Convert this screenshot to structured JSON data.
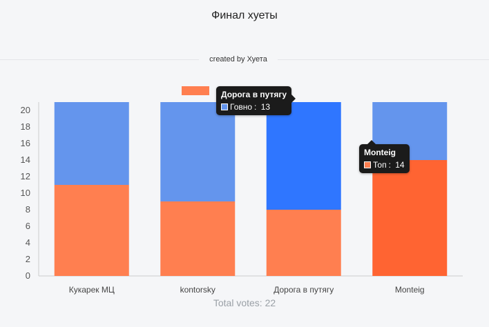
{
  "title": "Финал хуеты",
  "credit": "created by Хуета",
  "footer": "Total votes: 22",
  "chart_data": {
    "type": "bar",
    "stacked": true,
    "categories": [
      "Кукарек МЦ",
      "kontorsky",
      "Дорога в путягу",
      "Monteig"
    ],
    "series": [
      {
        "name": "Топ",
        "values": [
          11,
          9,
          8,
          14
        ],
        "color": "#ff7f50"
      },
      {
        "name": "Говно",
        "values": [
          10,
          12,
          13,
          7
        ],
        "color": "#6495ed"
      }
    ],
    "ylim": [
      0,
      21
    ],
    "yticks": [
      0,
      2,
      4,
      6,
      8,
      10,
      12,
      14,
      16,
      18,
      20
    ],
    "legend": "top",
    "highlight": {
      "category_index": 2,
      "series_index": 1,
      "color": "#2f76ff"
    },
    "highlight2": {
      "category_index": 3,
      "series_index": 0,
      "color": "#ff6432"
    }
  },
  "tooltips": [
    {
      "title": "Дорога в путягу",
      "series": "Говно",
      "value": "13",
      "color": "#6495ed"
    },
    {
      "title": "Monteig",
      "series": "Топ",
      "value": "14",
      "color": "#ff7f50"
    }
  ]
}
